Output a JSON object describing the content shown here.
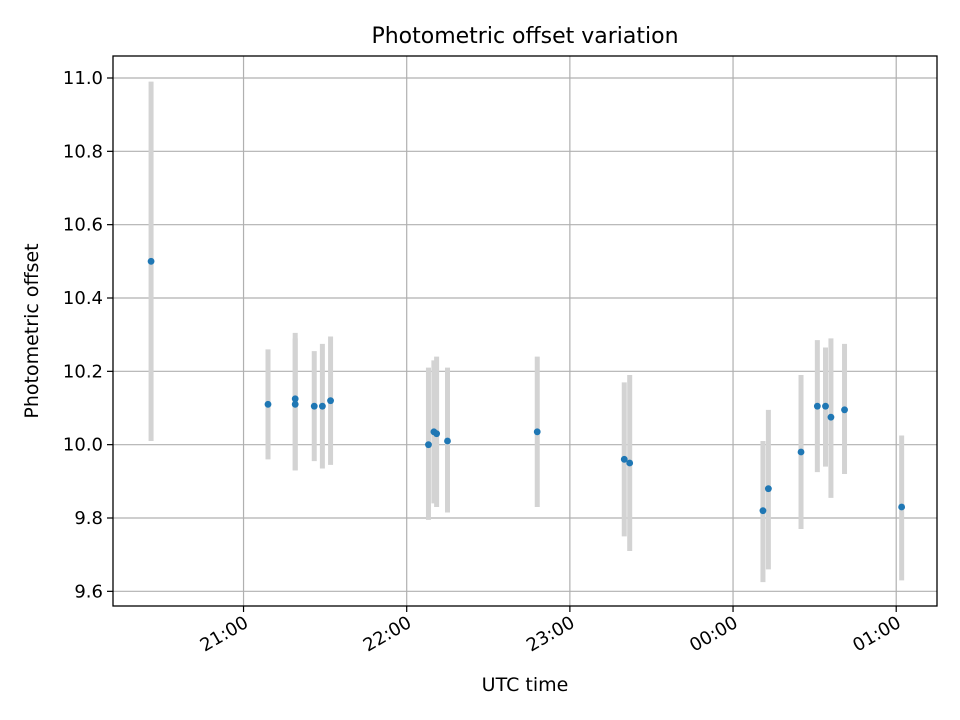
{
  "chart_data": {
    "type": "scatter",
    "title": "Photometric offset variation",
    "xlabel": "UTC time",
    "ylabel": "Photometric offset",
    "x_unit": "hours_since_midnight_utc",
    "xlim": [
      -3.8,
      1.25
    ],
    "ylim": [
      9.56,
      11.06
    ],
    "x_ticks": [
      {
        "value": -3.0,
        "label": "21:00"
      },
      {
        "value": -2.0,
        "label": "22:00"
      },
      {
        "value": -1.0,
        "label": "23:00"
      },
      {
        "value": 0.0,
        "label": "00:00"
      },
      {
        "value": 1.0,
        "label": "01:00"
      }
    ],
    "y_ticks": [
      {
        "value": 9.6,
        "label": "9.6"
      },
      {
        "value": 9.8,
        "label": "9.8"
      },
      {
        "value": 10.0,
        "label": "10.0"
      },
      {
        "value": 10.2,
        "label": "10.2"
      },
      {
        "value": 10.4,
        "label": "10.4"
      },
      {
        "value": 10.6,
        "label": "10.6"
      },
      {
        "value": 10.8,
        "label": "10.8"
      },
      {
        "value": 11.0,
        "label": "11.0"
      }
    ],
    "grid": true,
    "marker_color": "#1f77b4",
    "errorbar_color": "#d3d3d3",
    "series": [
      {
        "points": [
          {
            "time": "20:26",
            "y": 10.5,
            "low": 10.01,
            "high": 10.99
          },
          {
            "time": "21:09",
            "y": 10.11,
            "low": 9.96,
            "high": 10.26
          },
          {
            "time": "21:19",
            "y": 10.125,
            "low": 9.93,
            "high": 10.305
          },
          {
            "time": "21:19",
            "y": 10.11,
            "low": 9.93,
            "high": 10.29
          },
          {
            "time": "21:26",
            "y": 10.105,
            "low": 9.955,
            "high": 10.255
          },
          {
            "time": "21:29",
            "y": 10.105,
            "low": 9.935,
            "high": 10.275
          },
          {
            "time": "21:32",
            "y": 10.12,
            "low": 9.945,
            "high": 10.295
          },
          {
            "time": "22:08",
            "y": 10.0,
            "low": 9.795,
            "high": 10.21
          },
          {
            "time": "22:10",
            "y": 10.035,
            "low": 9.84,
            "high": 10.23
          },
          {
            "time": "22:11",
            "y": 10.03,
            "low": 9.83,
            "high": 10.24
          },
          {
            "time": "22:15",
            "y": 10.01,
            "low": 9.815,
            "high": 10.21
          },
          {
            "time": "22:48",
            "y": 10.035,
            "low": 9.83,
            "high": 10.24
          },
          {
            "time": "23:20",
            "y": 9.96,
            "low": 9.75,
            "high": 10.17
          },
          {
            "time": "23:22",
            "y": 9.95,
            "low": 9.71,
            "high": 10.19
          },
          {
            "time": "00:11",
            "y": 9.82,
            "low": 9.625,
            "high": 10.01
          },
          {
            "time": "00:13",
            "y": 9.88,
            "low": 9.66,
            "high": 10.095
          },
          {
            "time": "00:25",
            "y": 9.98,
            "low": 9.77,
            "high": 10.19
          },
          {
            "time": "00:31",
            "y": 10.105,
            "low": 9.925,
            "high": 10.285
          },
          {
            "time": "00:34",
            "y": 10.105,
            "low": 9.94,
            "high": 10.265
          },
          {
            "time": "00:36",
            "y": 10.075,
            "low": 9.855,
            "high": 10.29
          },
          {
            "time": "00:41",
            "y": 10.095,
            "low": 9.92,
            "high": 10.275
          },
          {
            "time": "01:02",
            "y": 9.83,
            "low": 9.63,
            "high": 10.025
          }
        ]
      }
    ]
  }
}
